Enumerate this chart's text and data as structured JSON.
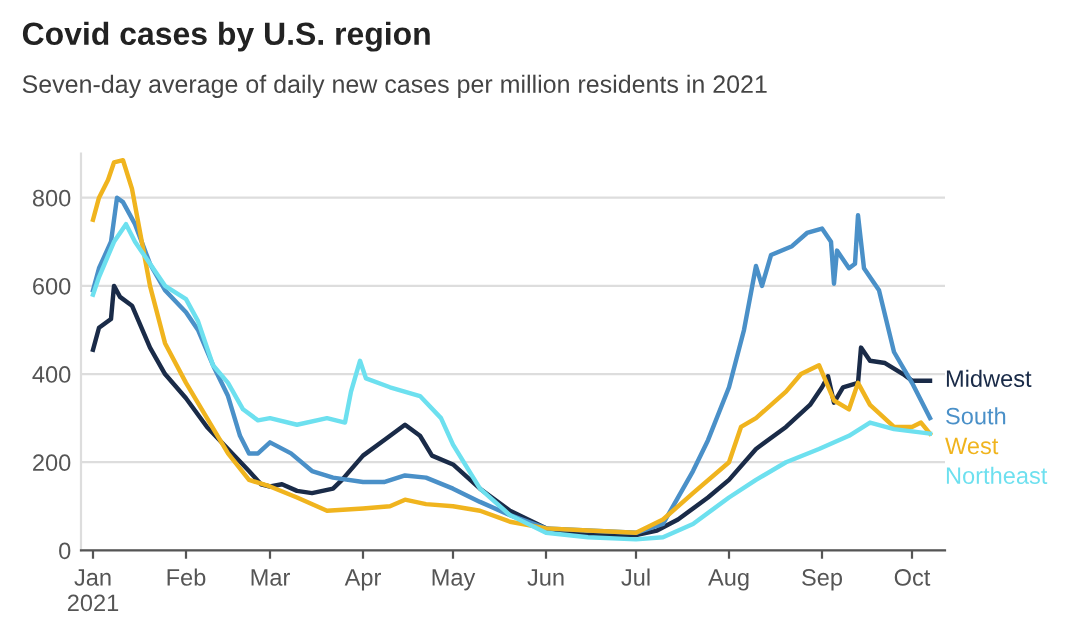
{
  "chart_data": {
    "type": "line",
    "title": "Covid cases by U.S. region",
    "subtitle": "Seven-day average of daily new cases per million residents in 2021",
    "xlim": [
      "2020-12-28",
      "2021-10-12"
    ],
    "ylim": [
      0,
      900
    ],
    "yticks": [
      0,
      200,
      400,
      600,
      800
    ],
    "xticks": [
      {
        "value": "2021-01-01",
        "label": "Jan\n2021"
      },
      {
        "value": "2021-02-01",
        "label": "Feb"
      },
      {
        "value": "2021-03-01",
        "label": "Mar"
      },
      {
        "value": "2021-04-01",
        "label": "Apr"
      },
      {
        "value": "2021-05-01",
        "label": "May"
      },
      {
        "value": "2021-06-01",
        "label": "Jun"
      },
      {
        "value": "2021-07-01",
        "label": "Jul"
      },
      {
        "value": "2021-08-01",
        "label": "Aug"
      },
      {
        "value": "2021-09-01",
        "label": "Sep"
      },
      {
        "value": "2021-10-01",
        "label": "Oct"
      }
    ],
    "grid": "y",
    "legend": false,
    "marker": "none",
    "line_style": "solid",
    "series": [
      {
        "name": "Midwest",
        "color": "#1a2b48",
        "x": [
          "2021-01-01",
          "2021-01-03",
          "2021-01-07",
          "2021-01-08",
          "2021-01-10",
          "2021-01-14",
          "2021-01-20",
          "2021-01-25",
          "2021-02-01",
          "2021-02-08",
          "2021-02-15",
          "2021-02-22",
          "2021-02-26",
          "2021-03-01",
          "2021-03-05",
          "2021-03-10",
          "2021-03-15",
          "2021-03-22",
          "2021-03-25",
          "2021-04-01",
          "2021-04-08",
          "2021-04-15",
          "2021-04-20",
          "2021-04-24",
          "2021-05-01",
          "2021-05-10",
          "2021-05-20",
          "2021-06-01",
          "2021-06-15",
          "2021-07-01",
          "2021-07-08",
          "2021-07-15",
          "2021-07-25",
          "2021-08-01",
          "2021-08-10",
          "2021-08-20",
          "2021-08-28",
          "2021-09-01",
          "2021-09-03",
          "2021-09-05",
          "2021-09-08",
          "2021-09-13",
          "2021-09-14",
          "2021-09-17",
          "2021-09-22",
          "2021-09-28",
          "2021-10-01",
          "2021-10-07"
        ],
        "values": [
          455,
          505,
          525,
          600,
          575,
          555,
          460,
          400,
          345,
          280,
          230,
          180,
          150,
          145,
          150,
          135,
          130,
          140,
          160,
          215,
          250,
          285,
          260,
          215,
          195,
          140,
          90,
          50,
          35,
          35,
          45,
          70,
          120,
          160,
          230,
          280,
          330,
          370,
          395,
          335,
          370,
          380,
          460,
          430,
          425,
          400,
          385,
          385
        ]
      },
      {
        "name": "South",
        "color": "#4a90c8",
        "x": [
          "2021-01-01",
          "2021-01-03",
          "2021-01-07",
          "2021-01-09",
          "2021-01-11",
          "2021-01-15",
          "2021-01-20",
          "2021-01-25",
          "2021-02-01",
          "2021-02-05",
          "2021-02-10",
          "2021-02-15",
          "2021-02-19",
          "2021-02-22",
          "2021-02-25",
          "2021-03-01",
          "2021-03-08",
          "2021-03-15",
          "2021-03-22",
          "2021-04-01",
          "2021-04-08",
          "2021-04-15",
          "2021-04-22",
          "2021-05-01",
          "2021-05-10",
          "2021-05-20",
          "2021-06-01",
          "2021-06-15",
          "2021-07-01",
          "2021-07-10",
          "2021-07-20",
          "2021-07-25",
          "2021-08-01",
          "2021-08-06",
          "2021-08-10",
          "2021-08-12",
          "2021-08-15",
          "2021-08-22",
          "2021-08-27",
          "2021-09-01",
          "2021-09-04",
          "2021-09-05",
          "2021-09-06",
          "2021-09-10",
          "2021-09-12",
          "2021-09-13",
          "2021-09-15",
          "2021-09-20",
          "2021-09-25",
          "2021-10-01",
          "2021-10-07"
        ],
        "values": [
          590,
          640,
          700,
          800,
          790,
          740,
          650,
          590,
          540,
          500,
          420,
          350,
          260,
          220,
          220,
          245,
          220,
          180,
          165,
          155,
          155,
          170,
          165,
          140,
          110,
          80,
          50,
          45,
          40,
          60,
          180,
          250,
          370,
          500,
          645,
          600,
          670,
          690,
          720,
          730,
          700,
          605,
          680,
          640,
          650,
          760,
          640,
          590,
          450,
          380,
          300
        ]
      },
      {
        "name": "West",
        "color": "#f0b41e",
        "x": [
          "2021-01-01",
          "2021-01-03",
          "2021-01-06",
          "2021-01-08",
          "2021-01-11",
          "2021-01-14",
          "2021-01-20",
          "2021-01-25",
          "2021-02-01",
          "2021-02-08",
          "2021-02-15",
          "2021-02-22",
          "2021-03-01",
          "2021-03-10",
          "2021-03-20",
          "2021-04-01",
          "2021-04-10",
          "2021-04-15",
          "2021-04-22",
          "2021-05-01",
          "2021-05-10",
          "2021-05-20",
          "2021-06-01",
          "2021-06-15",
          "2021-07-01",
          "2021-07-10",
          "2021-07-20",
          "2021-08-01",
          "2021-08-05",
          "2021-08-10",
          "2021-08-20",
          "2021-08-25",
          "2021-08-31",
          "2021-09-05",
          "2021-09-10",
          "2021-09-13",
          "2021-09-17",
          "2021-09-25",
          "2021-10-01",
          "2021-10-04",
          "2021-10-07"
        ],
        "values": [
          750,
          800,
          840,
          880,
          885,
          820,
          600,
          470,
          380,
          300,
          220,
          160,
          145,
          120,
          90,
          95,
          100,
          115,
          105,
          100,
          90,
          65,
          50,
          45,
          40,
          70,
          130,
          200,
          280,
          300,
          360,
          400,
          420,
          340,
          320,
          380,
          330,
          280,
          280,
          290,
          265
        ]
      },
      {
        "name": "Northeast",
        "color": "#6de0ef",
        "x": [
          "2021-01-01",
          "2021-01-03",
          "2021-01-08",
          "2021-01-12",
          "2021-01-15",
          "2021-01-20",
          "2021-01-25",
          "2021-02-01",
          "2021-02-05",
          "2021-02-10",
          "2021-02-15",
          "2021-02-20",
          "2021-02-25",
          "2021-03-01",
          "2021-03-10",
          "2021-03-20",
          "2021-03-26",
          "2021-03-28",
          "2021-03-31",
          "2021-04-02",
          "2021-04-10",
          "2021-04-20",
          "2021-04-27",
          "2021-05-01",
          "2021-05-10",
          "2021-05-20",
          "2021-06-01",
          "2021-06-15",
          "2021-07-01",
          "2021-07-10",
          "2021-07-20",
          "2021-08-01",
          "2021-08-10",
          "2021-08-20",
          "2021-08-31",
          "2021-09-10",
          "2021-09-17",
          "2021-09-25",
          "2021-10-01",
          "2021-10-07"
        ],
        "values": [
          580,
          620,
          700,
          740,
          700,
          650,
          600,
          570,
          520,
          420,
          380,
          320,
          295,
          300,
          285,
          300,
          290,
          360,
          430,
          390,
          370,
          350,
          300,
          240,
          140,
          80,
          40,
          30,
          25,
          30,
          60,
          120,
          160,
          200,
          230,
          260,
          290,
          275,
          270,
          265
        ]
      }
    ]
  }
}
